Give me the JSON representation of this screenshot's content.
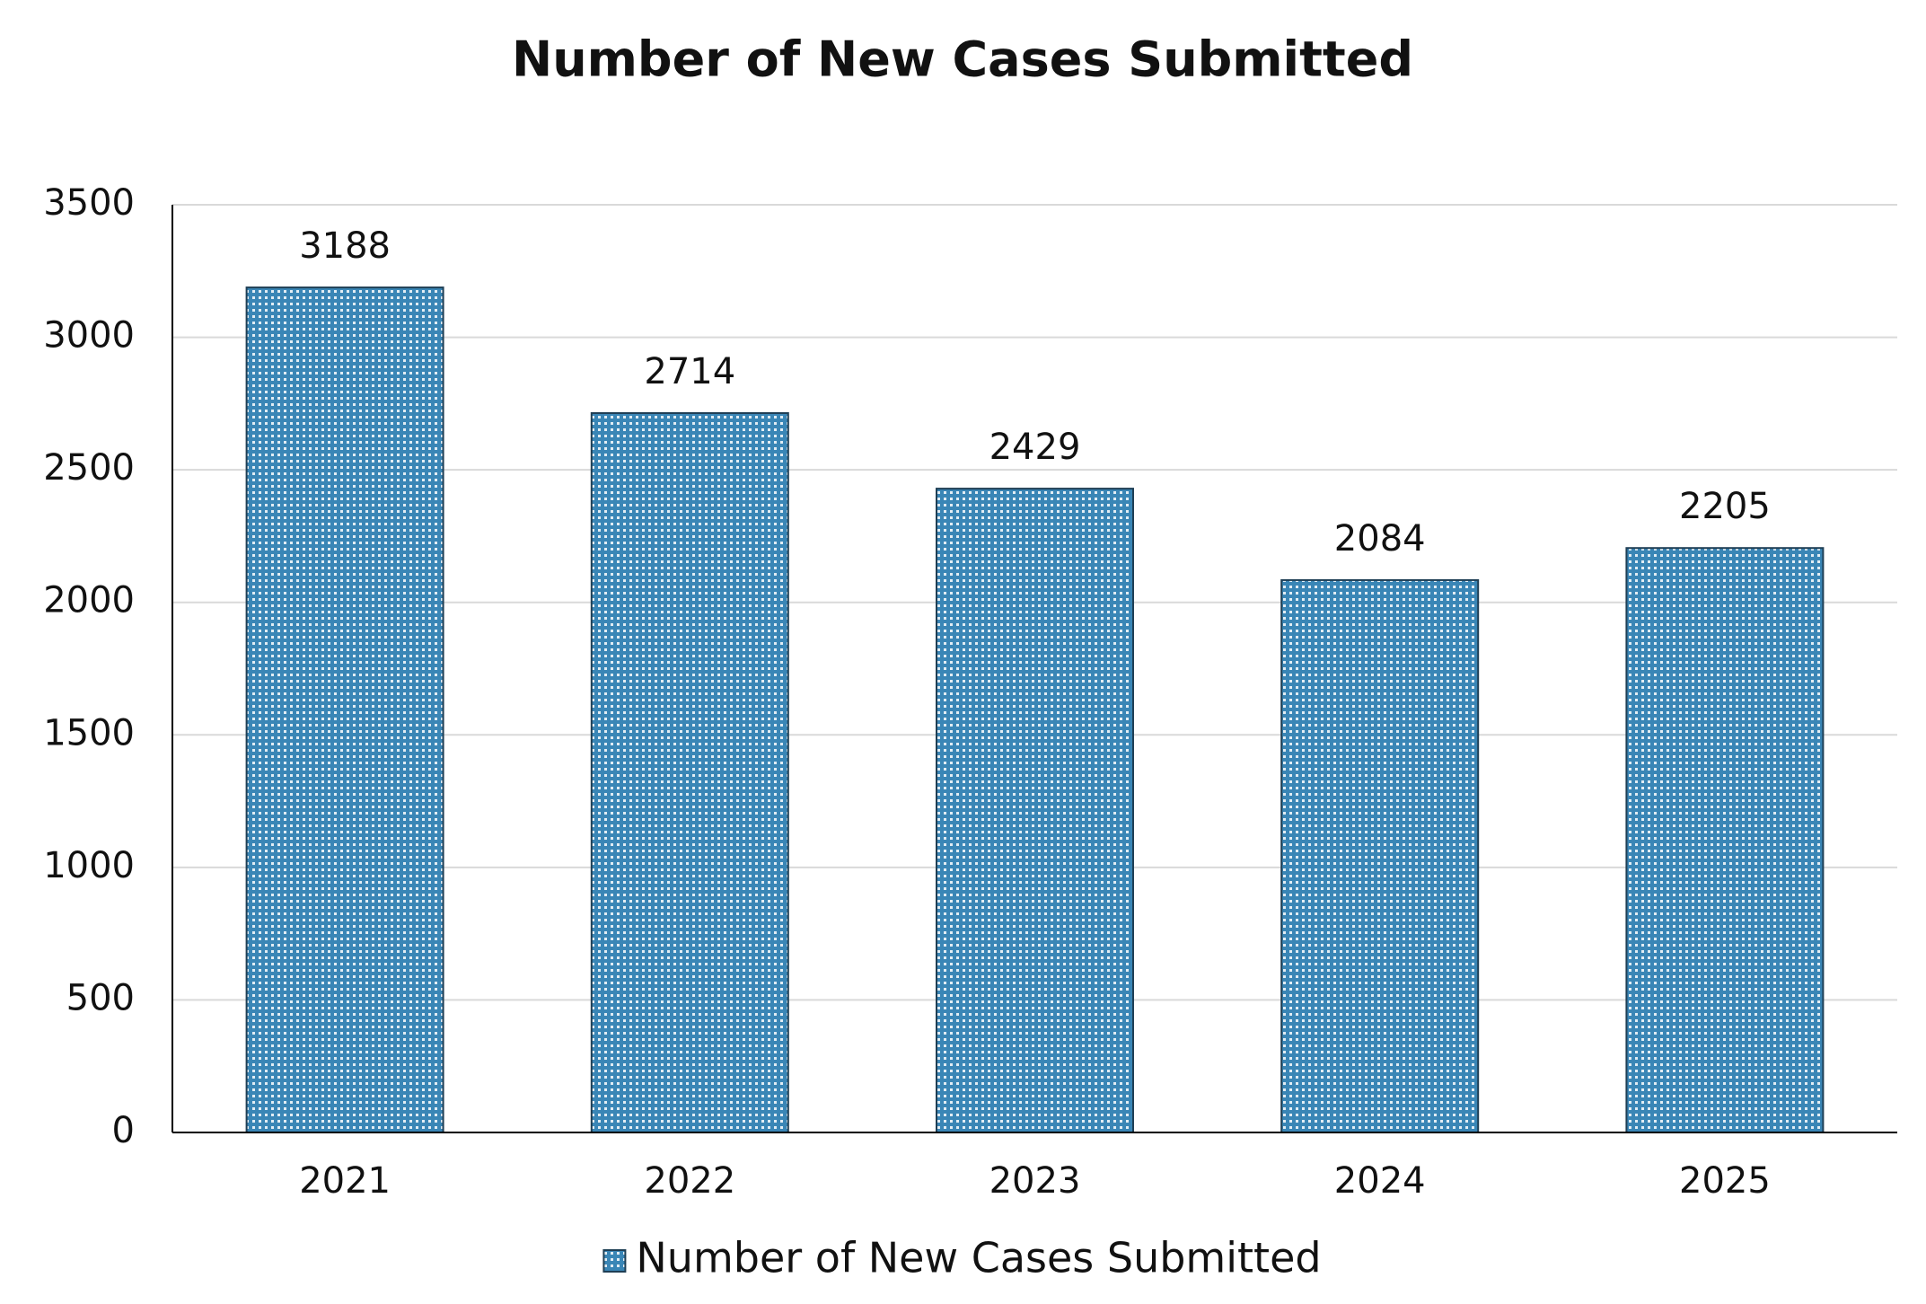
{
  "chart_data": {
    "type": "bar",
    "title": "Number of New Cases Submitted",
    "categories": [
      "2021",
      "2022",
      "2023",
      "2024",
      "2025"
    ],
    "series": [
      {
        "name": "Number of New Cases Submitted",
        "color": "#3a86b6",
        "values": [
          3188,
          2714,
          2429,
          2084,
          2205
        ]
      }
    ],
    "ylim": [
      0,
      3500
    ],
    "yticks": [
      0,
      500,
      1000,
      1500,
      2000,
      2500,
      3000,
      3500
    ],
    "grid": true,
    "legend": "bottom",
    "data_labels": true
  }
}
